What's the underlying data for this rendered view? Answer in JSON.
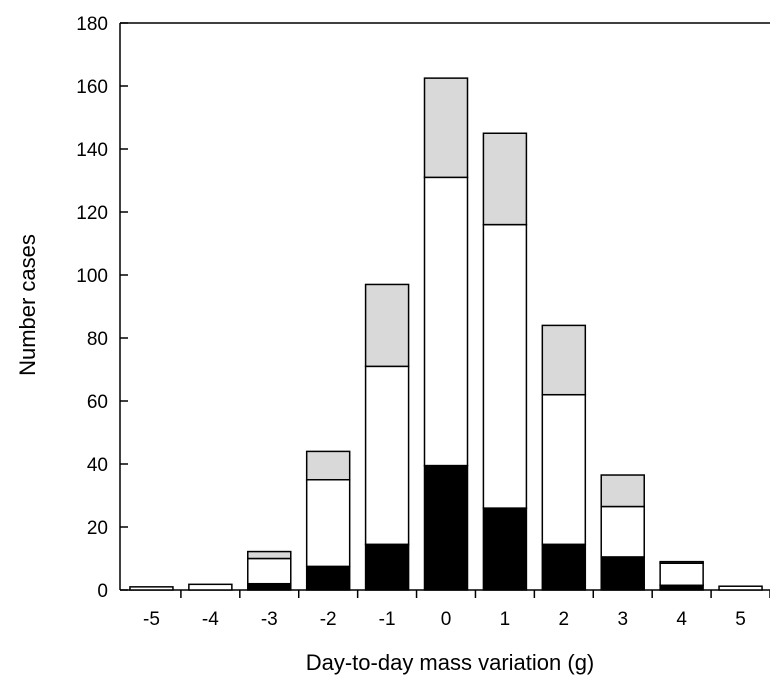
{
  "chart_data": {
    "type": "bar",
    "stacked": true,
    "title": "",
    "xlabel": "Day-to-day mass variation (g)",
    "ylabel": "Number cases",
    "ylim": [
      0,
      180
    ],
    "yticks": [
      0,
      20,
      40,
      60,
      80,
      100,
      120,
      140,
      160,
      180
    ],
    "grid": false,
    "legend": "none",
    "categories": [
      "-5",
      "-4",
      "-3",
      "-2",
      "-1",
      "0",
      "1",
      "2",
      "3",
      "4",
      "5"
    ],
    "series": [
      {
        "color": "#000000",
        "values": [
          0,
          0,
          2,
          7.5,
          14.5,
          39.5,
          26,
          14.5,
          10.5,
          1.5,
          0
        ]
      },
      {
        "color": "#ffffff",
        "values": [
          1,
          1.8,
          8,
          27.5,
          56.5,
          91.5,
          90,
          47.5,
          16,
          7,
          1.2
        ]
      },
      {
        "color": "#d9d9d9",
        "values": [
          0,
          0,
          2.2,
          9,
          26,
          31.5,
          29,
          22,
          10,
          0.5,
          0
        ]
      }
    ]
  }
}
